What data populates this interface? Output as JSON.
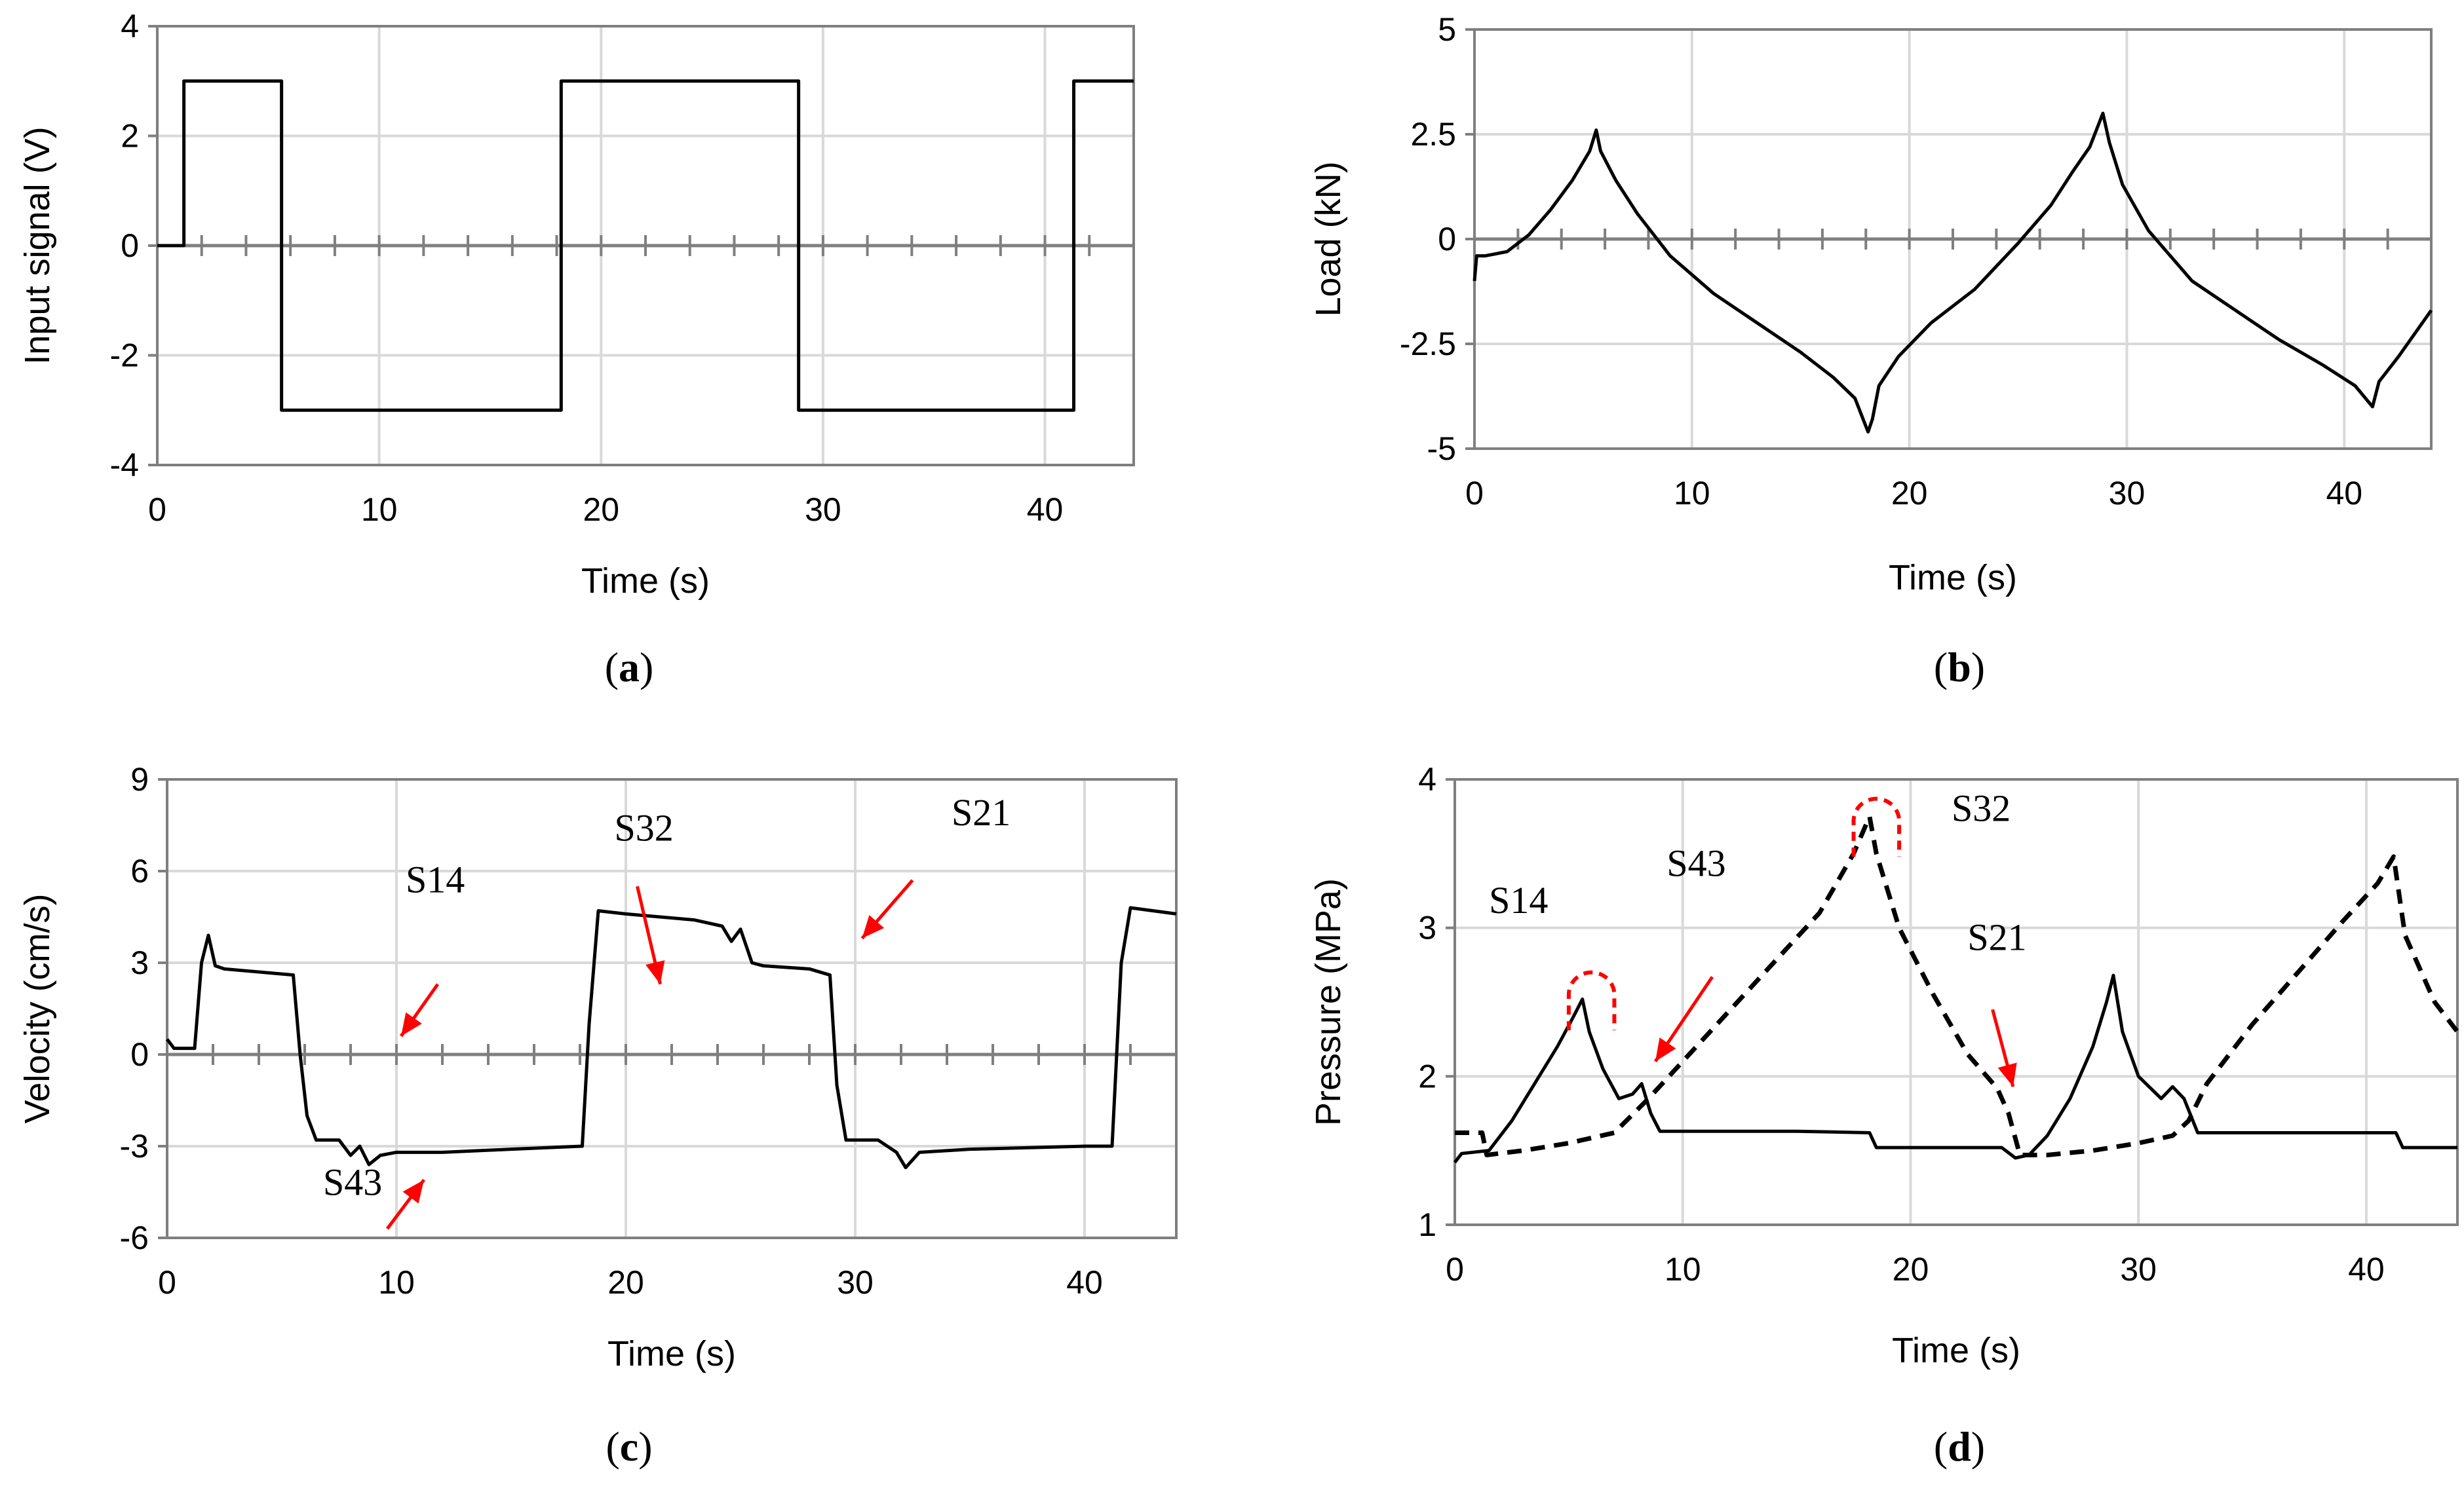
{
  "colors": {
    "series": "#000000",
    "grid": "#d9d9d9",
    "zero": "#7f7f7f",
    "frame": "#7f7f7f",
    "annotation": "#ff0000"
  },
  "chart_data": [
    {
      "id": "a",
      "type": "line",
      "caption": {
        "open": "(",
        "letter": "a",
        "close": ")"
      },
      "xlabel": "Time (s)",
      "ylabel": "Input signal (V)",
      "xlim": [
        0,
        44
      ],
      "ylim": [
        -4,
        4
      ],
      "xticks": [
        0,
        10,
        20,
        30,
        40
      ],
      "yticks": [
        -4,
        -2,
        0,
        2,
        4
      ],
      "ytick_labels": [
        "-4",
        "-2",
        "0",
        "2",
        "4"
      ],
      "series": [
        {
          "name": "Input signal",
          "style": "solid",
          "x": [
            0,
            1.2,
            1.2,
            5.6,
            5.6,
            18.2,
            18.2,
            28.9,
            28.9,
            41.3,
            41.3,
            44
          ],
          "y": [
            0,
            0,
            3,
            3,
            -3,
            -3,
            3,
            3,
            -3,
            -3,
            3,
            3
          ]
        }
      ],
      "annotations": []
    },
    {
      "id": "b",
      "type": "line",
      "caption": {
        "open": "(",
        "letter": "b",
        "close": ")"
      },
      "xlabel": "Time (s)",
      "ylabel": "Load (kN)",
      "xlim": [
        0,
        44
      ],
      "ylim": [
        -5,
        5
      ],
      "xticks": [
        0,
        10,
        20,
        30,
        40
      ],
      "yticks": [
        -5,
        -2.5,
        0,
        2.5,
        5
      ],
      "ytick_labels": [
        "-5",
        "-2.5",
        "0",
        "2.5",
        "5"
      ],
      "series": [
        {
          "name": "Load",
          "style": "solid",
          "x": [
            0,
            0.1,
            0.5,
            1.5,
            2.5,
            3.5,
            4.5,
            5.3,
            5.6,
            5.8,
            6.5,
            7.5,
            9,
            11,
            13,
            15,
            16.5,
            17.5,
            18.1,
            18.3,
            18.6,
            19.5,
            21,
            23,
            25,
            26.5,
            27.5,
            28.3,
            28.9,
            29.2,
            29.8,
            31,
            33,
            35,
            37,
            39,
            40.5,
            41.3,
            41.6,
            42.5,
            44
          ],
          "y": [
            -1.0,
            -0.4,
            -0.4,
            -0.3,
            0.1,
            0.7,
            1.4,
            2.1,
            2.6,
            2.1,
            1.4,
            0.6,
            -0.4,
            -1.3,
            -2.0,
            -2.7,
            -3.3,
            -3.8,
            -4.6,
            -4.3,
            -3.5,
            -2.8,
            -2.0,
            -1.2,
            -0.1,
            0.8,
            1.6,
            2.2,
            3.0,
            2.3,
            1.3,
            0.2,
            -1.0,
            -1.7,
            -2.4,
            -3.0,
            -3.5,
            -4.0,
            -3.4,
            -2.8,
            -1.7
          ]
        }
      ],
      "annotations": []
    },
    {
      "id": "c",
      "type": "line",
      "caption": {
        "open": "(",
        "letter": "c",
        "close": ")"
      },
      "xlabel": "Time (s)",
      "ylabel": "Velocity (cm/s)",
      "xlim": [
        0,
        44
      ],
      "ylim": [
        -6,
        9
      ],
      "xticks": [
        0,
        10,
        20,
        30,
        40
      ],
      "yticks": [
        -6,
        -3,
        0,
        3,
        6,
        9
      ],
      "ytick_labels": [
        "-6",
        "-3",
        "0",
        "3",
        "6",
        "9"
      ],
      "series": [
        {
          "name": "Velocity",
          "style": "solid",
          "x": [
            0,
            0.3,
            1.2,
            1.5,
            1.8,
            2.1,
            2.5,
            4,
            5.5,
            5.8,
            6.1,
            6.5,
            7.5,
            8,
            8.4,
            8.8,
            9.3,
            10,
            12,
            15,
            18.1,
            18.4,
            18.8,
            20,
            23,
            24.2,
            24.6,
            25,
            25.5,
            26,
            28,
            28.9,
            29.2,
            29.6,
            31,
            31.8,
            32.2,
            32.8,
            35,
            40,
            41.2,
            41.6,
            42,
            44
          ],
          "y": [
            0.5,
            0.2,
            0.2,
            3.0,
            3.9,
            2.9,
            2.8,
            2.7,
            2.6,
            0,
            -2.0,
            -2.8,
            -2.8,
            -3.3,
            -3.0,
            -3.6,
            -3.3,
            -3.2,
            -3.2,
            -3.1,
            -3.0,
            1.0,
            4.7,
            4.6,
            4.4,
            4.2,
            3.7,
            4.1,
            3.0,
            2.9,
            2.8,
            2.6,
            -1.0,
            -2.8,
            -2.8,
            -3.2,
            -3.7,
            -3.2,
            -3.1,
            -3.0,
            -3.0,
            3.0,
            4.8,
            4.6
          ]
        }
      ],
      "annotations": [
        {
          "label": "S14",
          "tx": 10.4,
          "ty": 5.3,
          "ax1": 11.8,
          "ay1": 2.3,
          "ax2": 10.2,
          "ay2": 0.6
        },
        {
          "label": "S32",
          "tx": 19.5,
          "ty": 7.0,
          "ax1": 20.5,
          "ay1": 5.5,
          "ax2": 21.5,
          "ay2": 2.3
        },
        {
          "label": "S21",
          "tx": 34.2,
          "ty": 7.5,
          "ax1": 32.5,
          "ay1": 5.7,
          "ax2": 30.3,
          "ay2": 3.8
        },
        {
          "label": "S43",
          "tx": 6.8,
          "ty": -4.6,
          "ax1": 9.6,
          "ay1": -5.7,
          "ax2": 11.2,
          "ay2": -4.1
        }
      ]
    },
    {
      "id": "d",
      "type": "line",
      "caption": {
        "open": "(",
        "letter": "d",
        "close": ")"
      },
      "xlabel": "Time (s)",
      "ylabel": "Pressure (MPa)",
      "xlim": [
        0,
        44
      ],
      "ylim": [
        1,
        4
      ],
      "xticks": [
        0,
        10,
        20,
        30,
        40
      ],
      "yticks": [
        1,
        2,
        3,
        4
      ],
      "ytick_labels": [
        "1",
        "2",
        "3",
        "4"
      ],
      "series": [
        {
          "name": "Pressure (solid)",
          "style": "solid",
          "x": [
            0,
            0.3,
            1.5,
            2.5,
            3.5,
            4.5,
            5.2,
            5.6,
            5.9,
            6.5,
            7.2,
            7.8,
            8.2,
            8.6,
            9.0,
            10,
            15,
            18.2,
            18.5,
            21,
            24,
            24.6,
            25.2,
            26,
            27,
            28,
            28.6,
            28.9,
            29.3,
            30,
            31,
            31.5,
            32,
            32.6,
            35,
            41.3,
            41.6,
            44
          ],
          "y": [
            1.42,
            1.48,
            1.5,
            1.7,
            1.95,
            2.2,
            2.4,
            2.52,
            2.3,
            2.05,
            1.85,
            1.88,
            1.95,
            1.75,
            1.63,
            1.63,
            1.63,
            1.62,
            1.52,
            1.52,
            1.52,
            1.45,
            1.47,
            1.6,
            1.85,
            2.2,
            2.5,
            2.68,
            2.3,
            2.0,
            1.85,
            1.93,
            1.85,
            1.62,
            1.62,
            1.62,
            1.52,
            1.52
          ]
        },
        {
          "name": "Pressure (dashed)",
          "style": "dashed",
          "x": [
            0,
            1.2,
            1.4,
            3,
            5,
            7,
            8.5,
            10,
            13,
            16,
            17.5,
            18.2,
            18.5,
            19.5,
            21,
            22.5,
            23.8,
            24.3,
            24.8,
            26,
            28,
            30,
            31.5,
            32.2,
            33,
            35,
            37,
            39,
            40.5,
            41.2,
            41.7,
            43,
            44
          ],
          "y": [
            1.62,
            1.62,
            1.47,
            1.5,
            1.55,
            1.62,
            1.85,
            2.1,
            2.6,
            3.1,
            3.5,
            3.75,
            3.5,
            3.0,
            2.55,
            2.15,
            1.92,
            1.75,
            1.47,
            1.47,
            1.5,
            1.55,
            1.6,
            1.7,
            1.95,
            2.35,
            2.7,
            3.05,
            3.3,
            3.48,
            2.95,
            2.5,
            2.3
          ]
        }
      ],
      "annotations": [
        {
          "label": "S14",
          "tx": 1.5,
          "ty": 3.1,
          "ax1": 11.3,
          "ay1": 2.67,
          "ax2": 8.8,
          "ay2": 2.1
        },
        {
          "label": "S43",
          "tx": 9.3,
          "ty": 3.35,
          "ax1": 11.3,
          "ay1": 2.67,
          "ax2": 8.8,
          "ay2": 2.1
        },
        {
          "label": "S32",
          "tx": 21.8,
          "ty": 3.72,
          "ax1": null,
          "ay1": null,
          "ax2": null,
          "ay2": null
        },
        {
          "label": "S21",
          "tx": 22.5,
          "ty": 2.85,
          "ax1": 23.6,
          "ay1": 2.45,
          "ax2": 24.5,
          "ay2": 1.93
        }
      ],
      "highlights": [
        {
          "shape": "dashed-arc",
          "cx": 6.0,
          "cy": 2.55,
          "rx": 1.0,
          "ry": 0.15
        },
        {
          "shape": "dashed-arc",
          "cx": 18.5,
          "cy": 3.72,
          "rx": 1.0,
          "ry": 0.15
        }
      ]
    }
  ]
}
